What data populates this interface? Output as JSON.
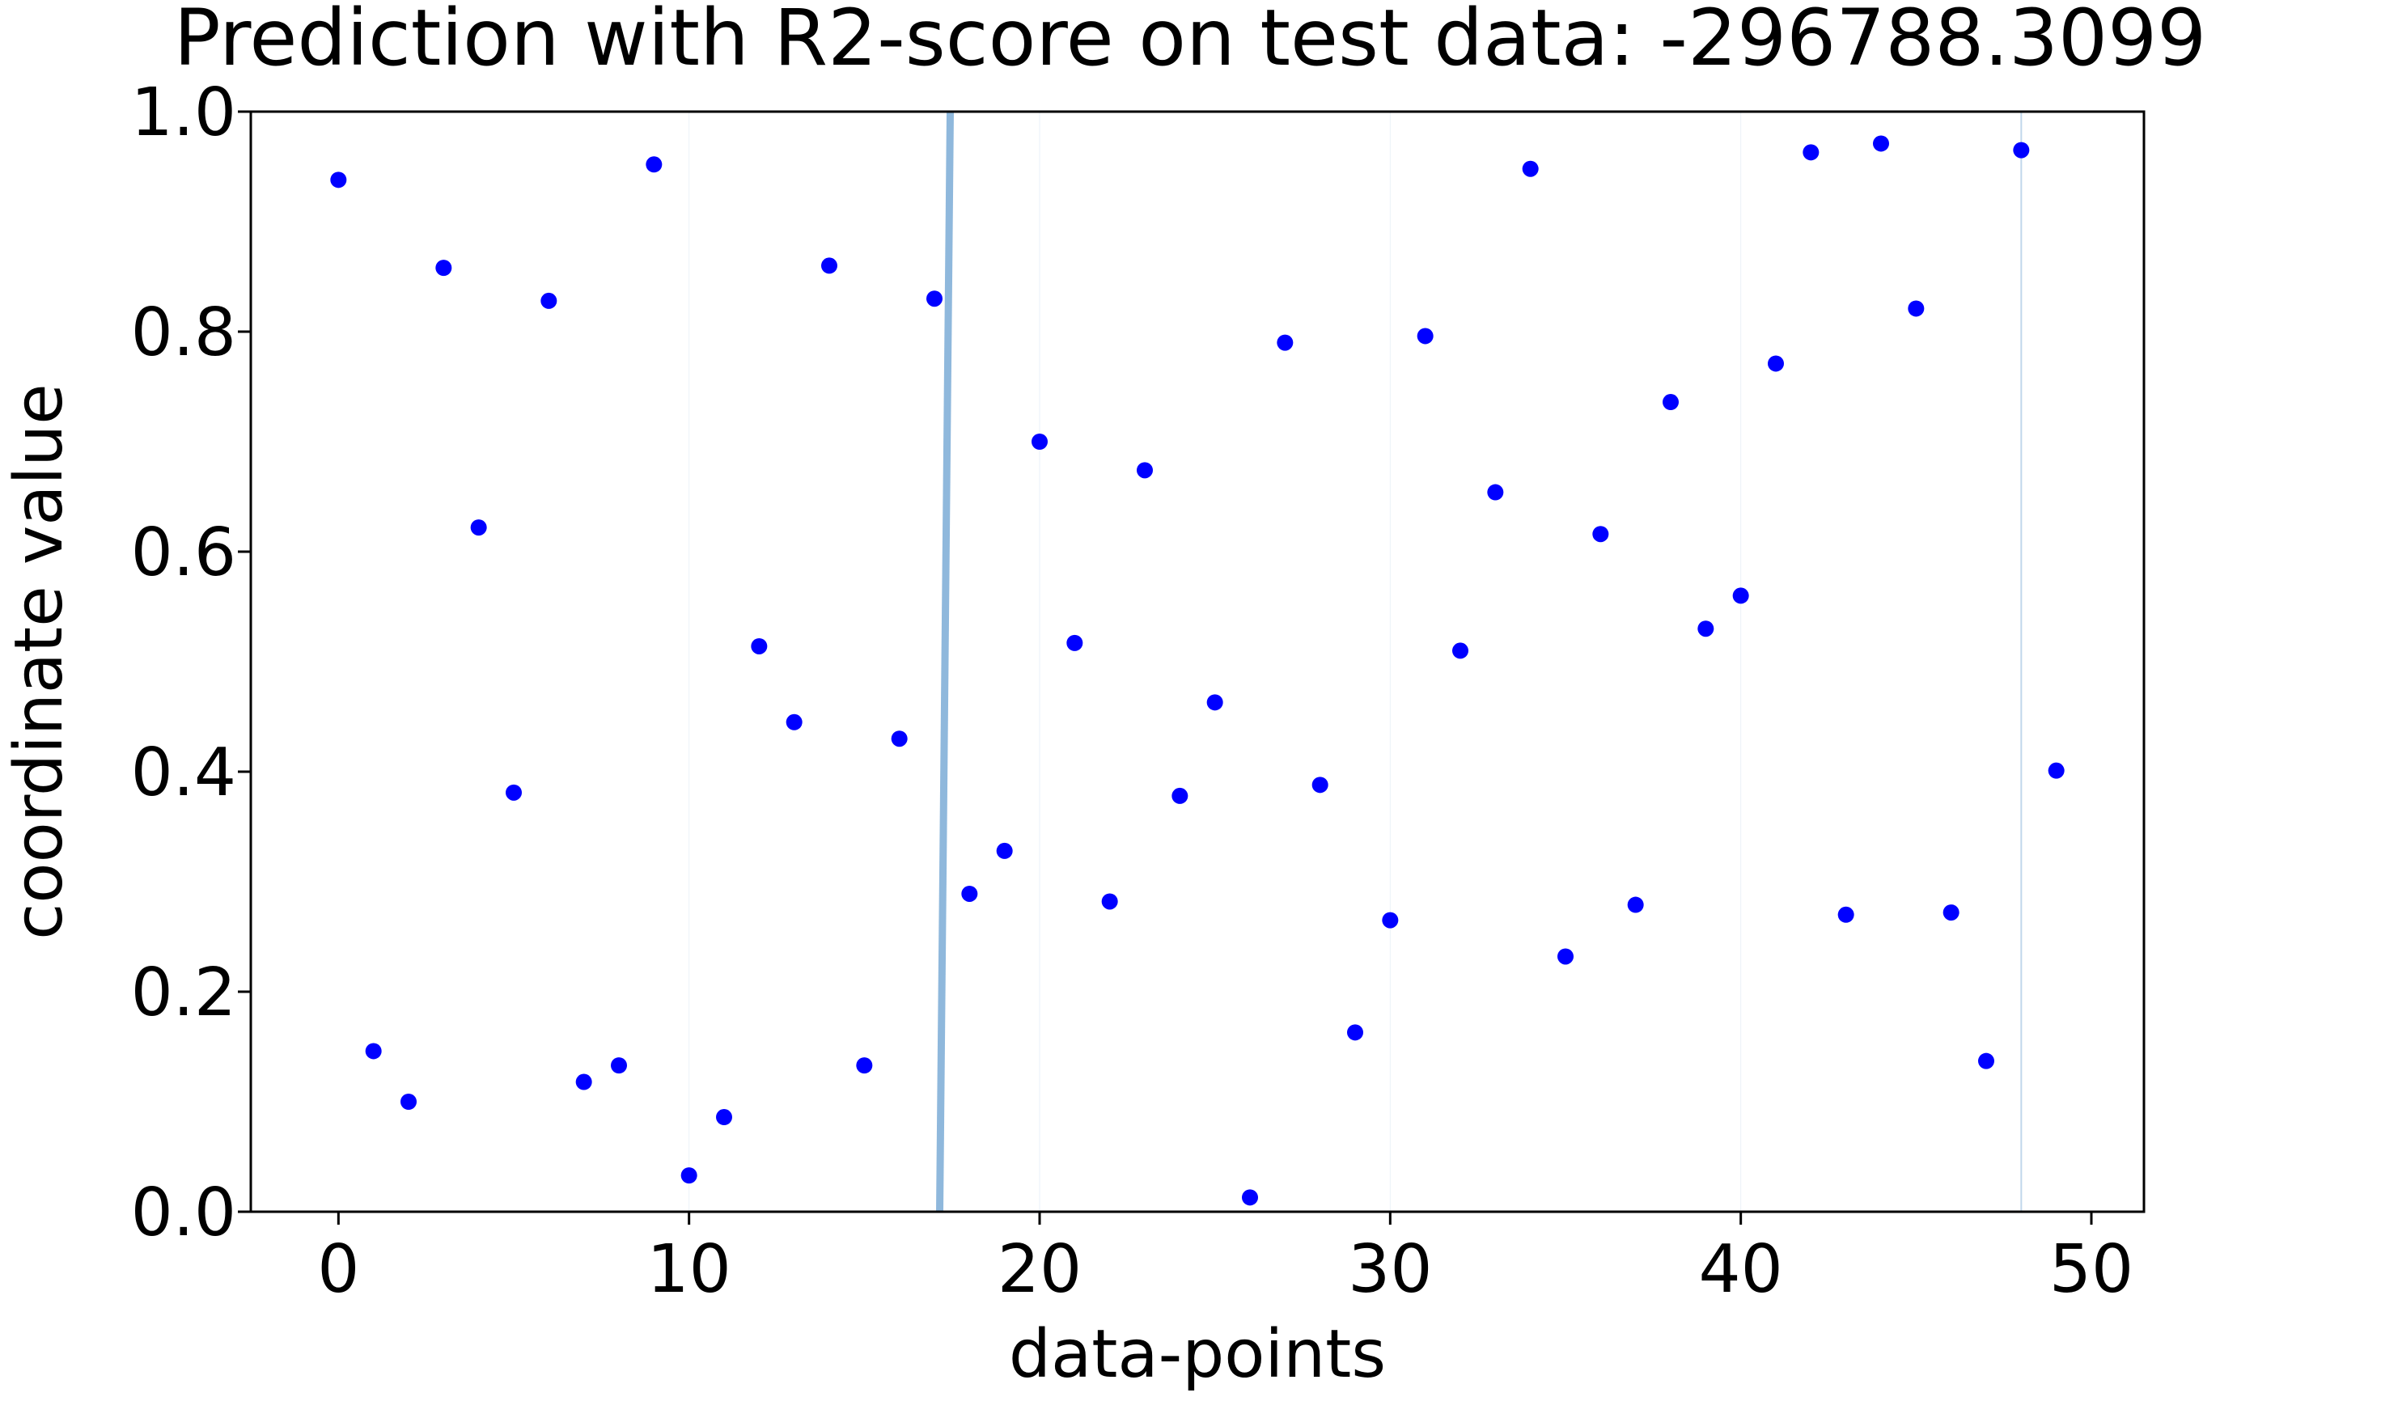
{
  "chart_data": {
    "type": "scatter",
    "title": "Prediction with R2-score on test data: -296788.3099",
    "xlabel": "data-points",
    "ylabel": "coordinate value",
    "xlim": [
      -2.5,
      51.5
    ],
    "ylim": [
      0.0,
      1.0
    ],
    "x_ticks": [
      0,
      10,
      20,
      30,
      40,
      50
    ],
    "x_tick_labels": [
      "0",
      "10",
      "20",
      "30",
      "40",
      "50"
    ],
    "y_ticks": [
      0.0,
      0.2,
      0.4,
      0.6,
      0.8,
      1.0
    ],
    "y_tick_labels": [
      "0.0",
      "0.2",
      "0.4",
      "0.6",
      "0.8",
      "1.0"
    ],
    "grid": false,
    "legend": "none",
    "colors": {
      "points": "#0000ff",
      "prediction_line": "#8fb8dc",
      "axes": "#000000"
    },
    "series": [
      {
        "kind": "scatter",
        "x": [
          0,
          1,
          2,
          3,
          4,
          5,
          6,
          7,
          8,
          9,
          10,
          11,
          12,
          13,
          14,
          15,
          16,
          17,
          18,
          19,
          20,
          21,
          22,
          23,
          24,
          25,
          26,
          27,
          28,
          29,
          30,
          31,
          32,
          33,
          34,
          35,
          36,
          37,
          38,
          39,
          40,
          41,
          42,
          43,
          44,
          45,
          46,
          47,
          48,
          49
        ],
        "y": [
          0.938,
          0.146,
          0.1,
          0.858,
          0.622,
          0.381,
          0.828,
          0.118,
          0.133,
          0.952,
          0.033,
          0.086,
          0.514,
          0.445,
          0.86,
          0.133,
          0.43,
          0.83,
          0.289,
          0.328,
          0.7,
          0.517,
          0.282,
          0.674,
          0.378,
          0.463,
          0.013,
          0.79,
          0.388,
          0.163,
          0.265,
          0.796,
          0.51,
          0.654,
          0.948,
          0.232,
          0.616,
          0.279,
          0.736,
          0.53,
          0.56,
          0.771,
          0.963,
          0.27,
          0.971,
          0.821,
          0.272,
          0.137,
          0.965,
          0.401
        ]
      },
      {
        "kind": "line",
        "x": [
          17.15,
          17.45
        ],
        "y": [
          0.0,
          1.0
        ]
      }
    ]
  }
}
